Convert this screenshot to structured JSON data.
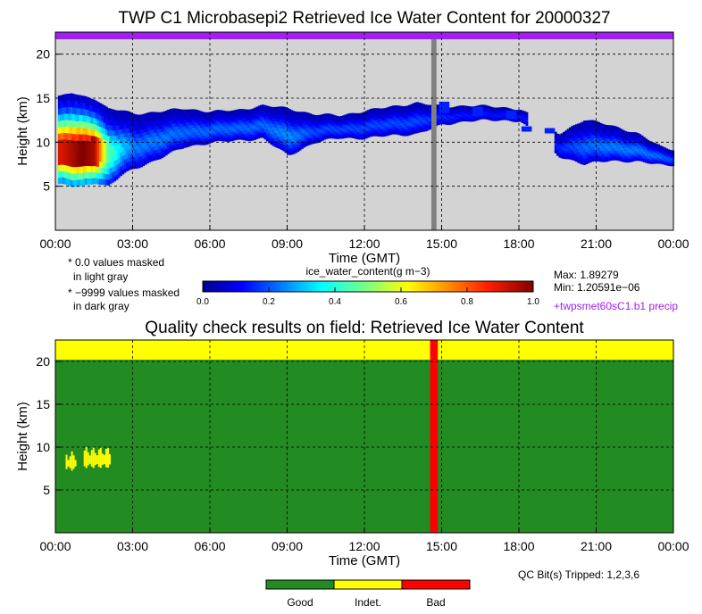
{
  "colors": {
    "background_missing": "#d3d3d3",
    "precip_bar": "#a020f0",
    "masked_dark": "#808080",
    "qc_good": "#228b22",
    "qc_indeterminate": "#ffff00",
    "qc_bad": "#ff0000"
  },
  "chart_data": [
    {
      "type": "heatmap",
      "title": "TWP C1 Microbasepi2 Retrieved Ice Water Content for 20000327",
      "xlabel": "Time (GMT)",
      "ylabel": "Height (km)",
      "xlim": [
        0,
        24
      ],
      "ylim": [
        0,
        22.5
      ],
      "x_ticks": [
        "00:00",
        "03:00",
        "06:00",
        "09:00",
        "12:00",
        "15:00",
        "18:00",
        "21:00",
        "00:00"
      ],
      "y_ticks": [
        "5",
        "10",
        "15",
        "20"
      ],
      "grid": true,
      "notes": [
        "* 0.0 values masked",
        "in light gray",
        "* −9999 values masked",
        "in dark gray"
      ],
      "colorbar": {
        "label": "ice_water_content(g m−3)",
        "range": [
          0,
          1
        ],
        "ticks": [
          "0.0",
          "0.2",
          "0.4",
          "0.6",
          "0.8",
          "1.0"
        ]
      },
      "stats": {
        "max": "Max: 1.89279",
        "min": "Min: 1.20591e−06"
      },
      "precip_label": "+twpsmet60sC1.b1 precip",
      "dark_gray_band": [
        14.6,
        14.8
      ],
      "cloud_layer": [
        {
          "t": 0.2,
          "bottom": 5.2,
          "top": 15.2,
          "core": 0.9
        },
        {
          "t": 0.6,
          "bottom": 5.0,
          "top": 15.6,
          "core": 0.95
        },
        {
          "t": 1.0,
          "bottom": 5.0,
          "top": 15.2,
          "core": 1.0
        },
        {
          "t": 1.5,
          "bottom": 5.5,
          "top": 15.0,
          "core": 0.95
        },
        {
          "t": 2.0,
          "bottom": 5.0,
          "top": 13.8,
          "core": 0.45
        },
        {
          "t": 2.5,
          "bottom": 6.2,
          "top": 13.6,
          "core": 0.3
        },
        {
          "t": 3.0,
          "bottom": 7.0,
          "top": 13.2,
          "core": 0.2
        },
        {
          "t": 4.0,
          "bottom": 8.2,
          "top": 13.5,
          "core": 0.2
        },
        {
          "t": 5.0,
          "bottom": 9.5,
          "top": 13.8,
          "core": 0.18
        },
        {
          "t": 6.0,
          "bottom": 10.0,
          "top": 13.5,
          "core": 0.18
        },
        {
          "t": 7.0,
          "bottom": 10.2,
          "top": 13.6,
          "core": 0.18
        },
        {
          "t": 8.0,
          "bottom": 10.5,
          "top": 14.2,
          "core": 0.18
        },
        {
          "t": 9.0,
          "bottom": 8.5,
          "top": 13.8,
          "core": 0.22
        },
        {
          "t": 10.0,
          "bottom": 10.0,
          "top": 13.2,
          "core": 0.15
        },
        {
          "t": 11.0,
          "bottom": 10.5,
          "top": 13.0,
          "core": 0.15
        },
        {
          "t": 12.0,
          "bottom": 10.5,
          "top": 13.6,
          "core": 0.15
        },
        {
          "t": 13.0,
          "bottom": 10.8,
          "top": 14.0,
          "core": 0.15
        },
        {
          "t": 14.0,
          "bottom": 11.0,
          "top": 14.5,
          "core": 0.15
        },
        {
          "t": 15.0,
          "bottom": 12.0,
          "top": 14.0,
          "core": 0.12
        },
        {
          "t": 16.0,
          "bottom": 12.5,
          "top": 14.2,
          "core": 0.1
        },
        {
          "t": 17.0,
          "bottom": 12.5,
          "top": 14.0,
          "core": 0.1
        },
        {
          "t": 18.0,
          "bottom": 12.5,
          "top": 13.8,
          "core": 0.1
        },
        {
          "t": 19.5,
          "bottom": 8.5,
          "top": 11.0,
          "core": 0.12
        },
        {
          "t": 20.5,
          "bottom": 7.5,
          "top": 12.5,
          "core": 0.18
        },
        {
          "t": 21.5,
          "bottom": 8.0,
          "top": 12.0,
          "core": 0.2
        },
        {
          "t": 22.5,
          "bottom": 7.8,
          "top": 11.0,
          "core": 0.2
        },
        {
          "t": 23.5,
          "bottom": 7.5,
          "top": 9.5,
          "core": 0.18
        },
        {
          "t": 24.0,
          "bottom": 7.5,
          "top": 9.2,
          "core": 0.15
        }
      ]
    },
    {
      "type": "heatmap",
      "title": "Quality check results on field: Retrieved Ice Water Content",
      "xlabel": "Time (GMT)",
      "ylabel": "Height (km)",
      "xlim": [
        0,
        24
      ],
      "ylim": [
        0,
        22.5
      ],
      "x_ticks": [
        "00:00",
        "03:00",
        "06:00",
        "09:00",
        "12:00",
        "15:00",
        "18:00",
        "21:00",
        "00:00"
      ],
      "y_ticks": [
        "5",
        "10",
        "15",
        "20"
      ],
      "grid": true,
      "qc_bits": "QC Bit(s) Tripped: 1,2,3,6",
      "indeterminate_top_above_km": 20.2,
      "bad_band": [
        14.55,
        14.85
      ],
      "indeterminate_patches": [
        {
          "t0": 0.4,
          "t1": 0.8,
          "y0": 7.5,
          "y1": 9.0
        },
        {
          "t0": 1.1,
          "t1": 2.1,
          "y0": 7.8,
          "y1": 9.5
        }
      ],
      "legend": [
        "Good",
        "Indet.",
        "Bad"
      ]
    }
  ]
}
